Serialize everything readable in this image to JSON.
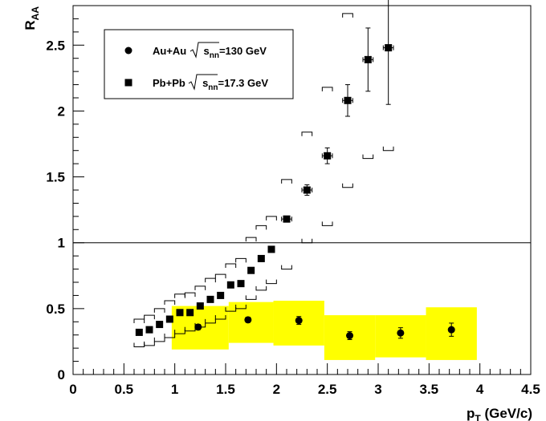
{
  "chart_data": {
    "type": "scatter",
    "xlabel_main": "p",
    "xlabel_sub": "T",
    "xlabel_unit": " (GeV/c)",
    "ylabel_main": "R",
    "ylabel_sub": "AA",
    "xlim": [
      0,
      4.5
    ],
    "ylim": [
      0,
      2.8
    ],
    "x_major_ticks": [
      0,
      0.5,
      1,
      1.5,
      2,
      2.5,
      3,
      3.5,
      4,
      4.5
    ],
    "x_tick_labels": [
      "0",
      "0.5",
      "1",
      "1.5",
      "2",
      "2.5",
      "3",
      "3.5",
      "4",
      "4.5"
    ],
    "y_major_ticks": [
      0,
      0.5,
      1,
      1.5,
      2,
      2.5
    ],
    "y_tick_labels": [
      "0",
      "0.5",
      "1",
      "1.5",
      "2",
      "2.5"
    ],
    "reference_line_y": 1,
    "legend": {
      "placement": "top-left",
      "entries": [
        {
          "marker": "circle",
          "label_prefix": "Au+Au ",
          "sqrt_sub": "nn",
          "label_suffix": "=130 GeV"
        },
        {
          "marker": "square",
          "label_prefix": "Pb+Pb ",
          "sqrt_sub": "nn",
          "label_suffix": "=17.3 GeV"
        }
      ]
    },
    "series": [
      {
        "marker": "circle",
        "color": "#000000",
        "band_color": "#ffff00",
        "points": [
          {
            "x": 1.23,
            "y": 0.36,
            "yerr": 0.02,
            "band": [
              0.97,
              1.53,
              0.19,
              0.52
            ]
          },
          {
            "x": 1.72,
            "y": 0.415,
            "yerr": 0.02,
            "band": [
              1.53,
              1.97,
              0.24,
              0.55
            ]
          },
          {
            "x": 2.22,
            "y": 0.41,
            "yerr": 0.03,
            "band": [
              1.97,
              2.47,
              0.22,
              0.56
            ]
          },
          {
            "x": 2.72,
            "y": 0.295,
            "yerr": 0.03,
            "band": [
              2.47,
              2.97,
              0.11,
              0.45
            ]
          },
          {
            "x": 3.22,
            "y": 0.315,
            "yerr": 0.04,
            "band": [
              2.97,
              3.47,
              0.13,
              0.45
            ]
          },
          {
            "x": 3.72,
            "y": 0.34,
            "yerr": 0.05,
            "band": [
              3.47,
              3.97,
              0.11,
              0.51
            ]
          }
        ]
      },
      {
        "marker": "square",
        "color": "#000000",
        "points": [
          {
            "x": 0.65,
            "y": 0.32,
            "xerr": 0,
            "yerr": 0,
            "sys": [
              0.21,
              0.42
            ]
          },
          {
            "x": 0.75,
            "y": 0.34,
            "xerr": 0,
            "yerr": 0,
            "sys": [
              0.22,
              0.45
            ]
          },
          {
            "x": 0.85,
            "y": 0.38,
            "xerr": 0,
            "yerr": 0,
            "sys": [
              0.25,
              0.5
            ]
          },
          {
            "x": 0.95,
            "y": 0.42,
            "xerr": 0,
            "yerr": 0,
            "sys": [
              0.28,
              0.56
            ]
          },
          {
            "x": 1.05,
            "y": 0.47,
            "xerr": 0,
            "yerr": 0,
            "sys": [
              0.31,
              0.61
            ]
          },
          {
            "x": 1.15,
            "y": 0.47,
            "xerr": 0,
            "yerr": 0,
            "sys": [
              0.33,
              0.62
            ]
          },
          {
            "x": 1.25,
            "y": 0.52,
            "xerr": 0,
            "yerr": 0,
            "sys": [
              0.36,
              0.67
            ]
          },
          {
            "x": 1.35,
            "y": 0.57,
            "xerr": 0,
            "yerr": 0,
            "sys": [
              0.39,
              0.73
            ]
          },
          {
            "x": 1.45,
            "y": 0.6,
            "xerr": 0,
            "yerr": 0,
            "sys": [
              0.42,
              0.76
            ]
          },
          {
            "x": 1.55,
            "y": 0.68,
            "xerr": 0,
            "yerr": 0,
            "sys": [
              0.48,
              0.84
            ]
          },
          {
            "x": 1.65,
            "y": 0.69,
            "xerr": 0,
            "yerr": 0,
            "sys": [
              0.5,
              0.88
            ]
          },
          {
            "x": 1.75,
            "y": 0.79,
            "xerr": 0,
            "yerr": 0,
            "sys": [
              0.57,
              1.04
            ]
          },
          {
            "x": 1.85,
            "y": 0.88,
            "xerr": 0,
            "yerr": 0,
            "sys": [
              0.64,
              1.13
            ]
          },
          {
            "x": 1.95,
            "y": 0.95,
            "xerr": 0,
            "yerr": 0,
            "sys": [
              0.69,
              1.2
            ]
          },
          {
            "x": 2.1,
            "y": 1.18,
            "xerr": 0.05,
            "yerr": 0.02,
            "sys": [
              0.8,
              1.48
            ]
          },
          {
            "x": 2.3,
            "y": 1.4,
            "xerr": 0.05,
            "yerr": 0.04,
            "sys": [
              1.0,
              1.84
            ]
          },
          {
            "x": 2.5,
            "y": 1.66,
            "xerr": 0.05,
            "yerr": 0.06,
            "sys": [
              1.13,
              2.18
            ]
          },
          {
            "x": 2.7,
            "y": 2.08,
            "xerr": 0.05,
            "yerr": 0.12,
            "sys": [
              1.42,
              2.74
            ]
          },
          {
            "x": 2.9,
            "y": 2.39,
            "xerr": 0.05,
            "yerr": 0.24,
            "sys": [
              1.64,
              null
            ]
          },
          {
            "x": 3.1,
            "y": 2.48,
            "xerr": 0.05,
            "yerr": 0.43,
            "sys": [
              1.7,
              null
            ]
          }
        ]
      }
    ]
  }
}
